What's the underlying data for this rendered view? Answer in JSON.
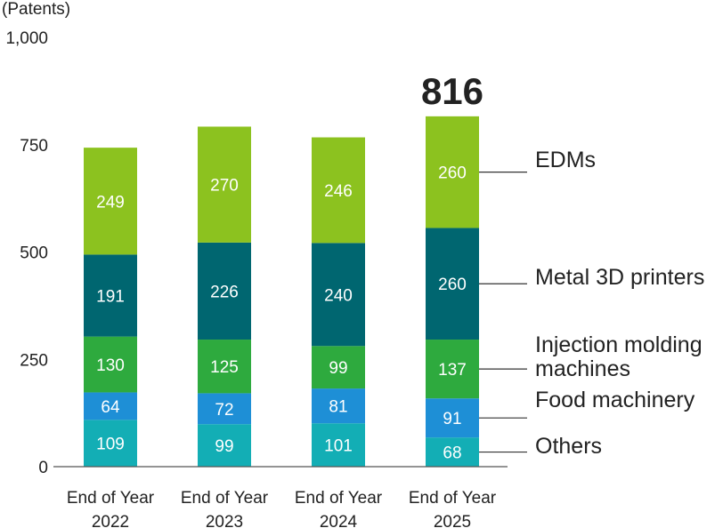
{
  "chart_data": {
    "type": "bar",
    "stacked": true,
    "unit_label": "(Patents)",
    "categories": [
      [
        "End of Year",
        "2022"
      ],
      [
        "End of Year",
        "2023"
      ],
      [
        "End of Year",
        "2024"
      ],
      [
        "End of Year",
        "2025"
      ]
    ],
    "series": [
      {
        "name": "Others",
        "values": [
          109,
          99,
          101,
          68
        ],
        "color": "#13aeb5"
      },
      {
        "name": "Food machinery",
        "values": [
          64,
          72,
          81,
          91
        ],
        "color": "#1e8fd6"
      },
      {
        "name": [
          "Injection molding",
          "machines"
        ],
        "values": [
          130,
          125,
          99,
          137
        ],
        "color": "#2eaa3e"
      },
      {
        "name": "Metal 3D printers",
        "values": [
          191,
          226,
          240,
          260
        ],
        "color": "#006670"
      },
      {
        "name": "EDMs",
        "values": [
          249,
          270,
          246,
          260
        ],
        "color": "#8cc21f"
      }
    ],
    "highlight_total": {
      "category_index": 3,
      "label": "816"
    },
    "y_ticks": [
      "0",
      "250",
      "500",
      "750",
      "1,000"
    ],
    "ylim": [
      0,
      1000
    ],
    "legend_placement": "right, labels attached to the last bar",
    "grid": false
  }
}
